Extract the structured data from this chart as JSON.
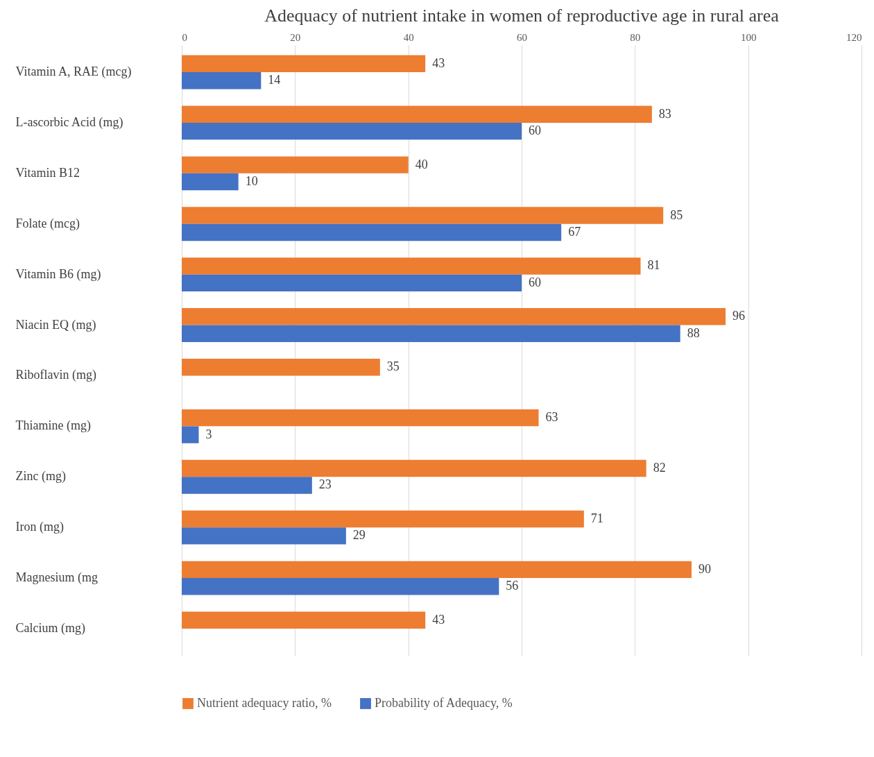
{
  "chart_data": {
    "type": "bar",
    "orientation": "horizontal",
    "title": "Adequacy of nutrient intake in women of reproductive age in rural area",
    "categories": [
      "Vitamin A, RAE (mcg)",
      "L-ascorbic Acid (mg)",
      "Vitamin B12",
      "Folate (mcg)",
      "Vitamin B6 (mg)",
      "Niacin EQ (mg)",
      "Riboflavin (mg)",
      "Thiamine (mg)",
      "Zinc (mg)",
      "Iron (mg)",
      "Magnesium (mg",
      "Calcium (mg)"
    ],
    "series": [
      {
        "name": "Nutrient adequacy ratio, %",
        "color": "#ed7d31",
        "values": [
          43,
          83,
          40,
          85,
          81,
          96,
          35,
          63,
          82,
          71,
          90,
          43
        ]
      },
      {
        "name": "Probability of Adequacy, %",
        "color": "#4472c4",
        "values": [
          14,
          60,
          10,
          67,
          60,
          88,
          null,
          3,
          23,
          29,
          56,
          null
        ]
      }
    ],
    "xlim": [
      0,
      120
    ],
    "xticks": [
      0,
      20,
      40,
      60,
      80,
      100,
      120
    ],
    "grid": "x",
    "legend": "bottom",
    "data_labels": true
  }
}
